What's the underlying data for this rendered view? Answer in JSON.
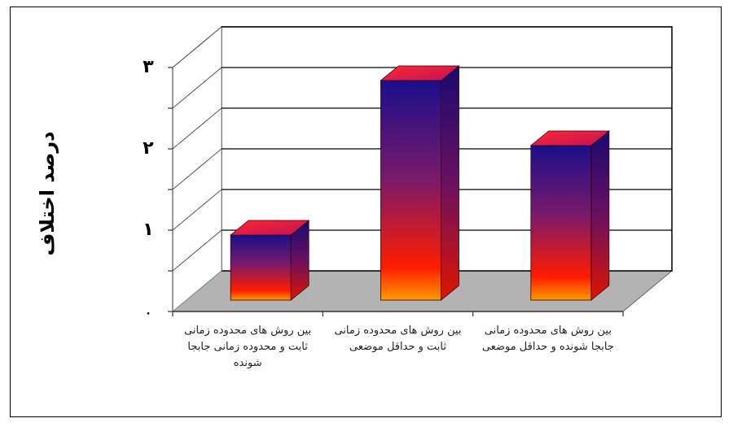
{
  "chart_data": {
    "type": "bar",
    "ylabel": "درصد اختلاف",
    "categories": [
      "بین روش های محدوده زمانی ثابت و محدوده زمانی جابجا شونده",
      "بین روش های محدوده زمانی ثابت و حداقل موضعی",
      "بین روش های محدوده زمانی جابجا شونده و حداقل موضعی"
    ],
    "values": [
      0.8,
      2.7,
      1.9
    ],
    "yticks": [
      "۰",
      "۱",
      "۲",
      "۳"
    ],
    "ylim": [
      0,
      3
    ],
    "grid": true,
    "style": "3d-column",
    "colors": {
      "top": "#1a0f8c",
      "bottom": "#ff2a00",
      "base": "#ff9a00",
      "floor": "#b3b3b3"
    }
  }
}
